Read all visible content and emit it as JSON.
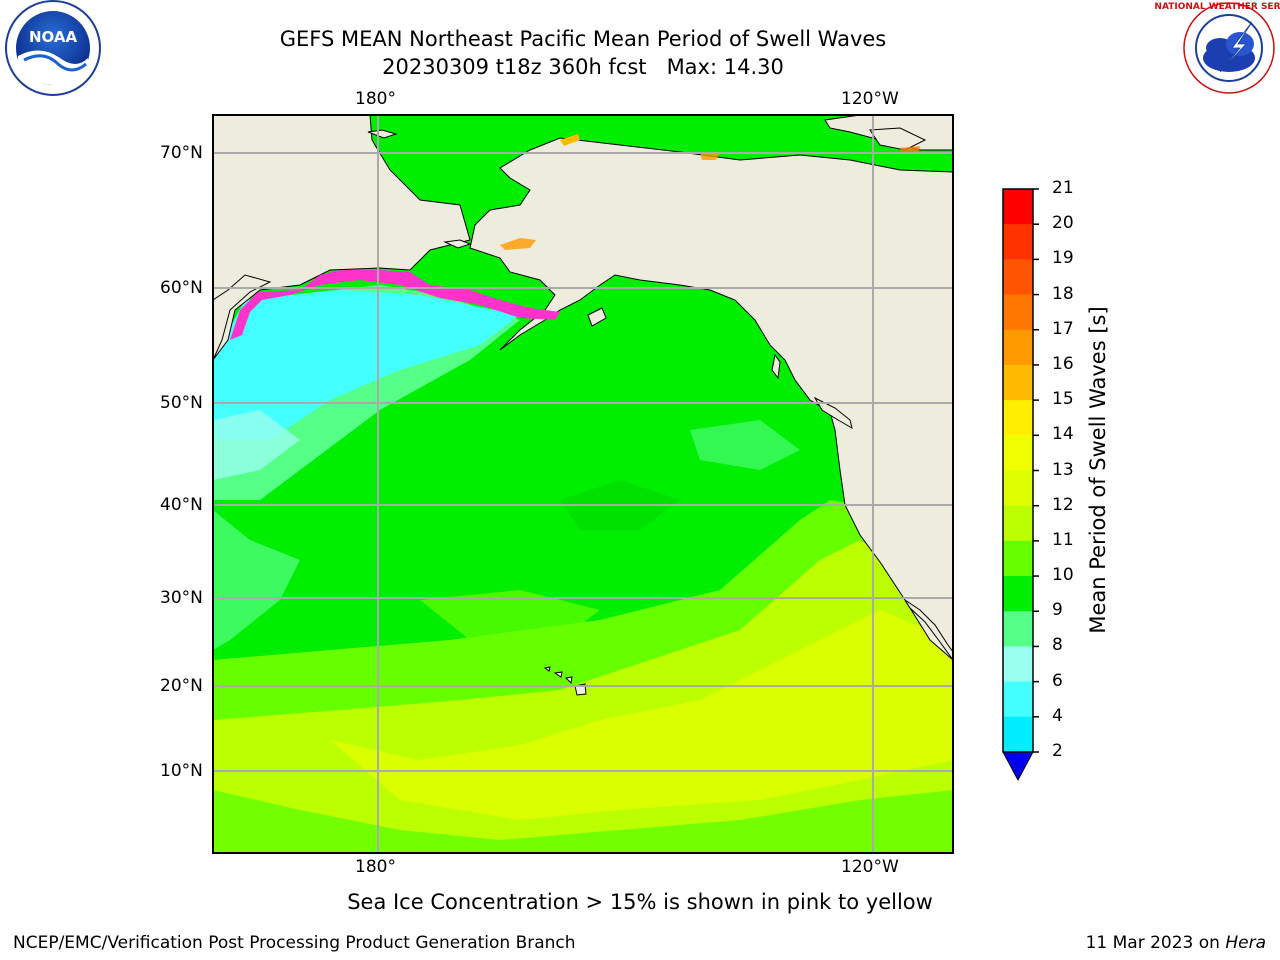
{
  "title": {
    "line1": "GEFS MEAN Northeast Pacific Mean Period of Swell Waves",
    "line2": "20230309 t18z 360h fcst   Max: 14.30"
  },
  "logos": {
    "noaa_text": "NOAA",
    "noaa_ring_text": "NATIONAL OCEANIC AND ATMOSPHERIC ADMINISTRATION · U.S. DEPARTMENT OF COMMERCE",
    "nws_ring_text": "NATIONAL WEATHER SERVICE"
  },
  "map": {
    "top_lon_labels": [
      "180°",
      "120°W"
    ],
    "bottom_lon_labels": [
      "180°",
      "120°W"
    ],
    "lat_labels": [
      "70°N",
      "60°N",
      "50°N",
      "40°N",
      "30°N",
      "20°N",
      "10°N"
    ],
    "ocean_color": "#22ee22",
    "land_color": "#eeecdc",
    "ice_color": "#ff33cc"
  },
  "colorbar": {
    "label": "Mean Period of Swell Waves [s]",
    "ticks": [
      "21",
      "20",
      "19",
      "18",
      "17",
      "16",
      "15",
      "14",
      "13",
      "12",
      "11",
      "10",
      "9",
      "8",
      "6",
      "4",
      "2"
    ],
    "colors": [
      "#ff0000",
      "#ff3300",
      "#ff5500",
      "#ff7700",
      "#ff9900",
      "#ffbb00",
      "#ffee00",
      "#f0ff00",
      "#ddff00",
      "#bbff00",
      "#66ff00",
      "#00ee00",
      "#55ff88",
      "#99ffee",
      "#44ffff",
      "#00eeff",
      "#00bbff",
      "#0066ff"
    ],
    "extend_color": "#0000ee"
  },
  "footer": {
    "note": "Sea Ice Concentration > 15% is shown in pink to yellow",
    "left": "NCEP/EMC/Verification Post Processing Product Generation Branch",
    "right_date": "11 Mar 2023 on ",
    "right_host": "Hera"
  }
}
